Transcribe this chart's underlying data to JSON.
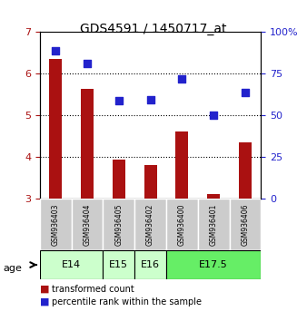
{
  "title": "GDS4591 / 1450717_at",
  "samples": [
    "GSM936403",
    "GSM936404",
    "GSM936405",
    "GSM936402",
    "GSM936400",
    "GSM936401",
    "GSM936406"
  ],
  "bar_values": [
    6.35,
    5.65,
    3.95,
    3.82,
    4.62,
    3.12,
    4.35
  ],
  "scatter_values": [
    6.55,
    6.25,
    5.35,
    5.38,
    5.88,
    5.02,
    5.56
  ],
  "bar_color": "#aa1111",
  "scatter_color": "#2222cc",
  "ylim_left": [
    3,
    7
  ],
  "ylim_right": [
    0,
    100
  ],
  "yticks_left": [
    3,
    4,
    5,
    6,
    7
  ],
  "yticks_right": [
    0,
    25,
    50,
    75,
    100
  ],
  "ytick_labels_right": [
    "0",
    "25",
    "50",
    "75",
    "100%"
  ],
  "groups": [
    {
      "label": "E14",
      "samples": [
        "GSM936403",
        "GSM936404"
      ],
      "color": "#ccffcc"
    },
    {
      "label": "E15",
      "samples": [
        "GSM936405"
      ],
      "color": "#ccffcc"
    },
    {
      "label": "E16",
      "samples": [
        "GSM936402"
      ],
      "color": "#ccffcc"
    },
    {
      "label": "E17.5",
      "samples": [
        "GSM936400",
        "GSM936401",
        "GSM936406"
      ],
      "color": "#66ee66"
    }
  ],
  "age_label": "age",
  "legend_bar_label": "transformed count",
  "legend_scatter_label": "percentile rank within the sample",
  "background_color": "#ffffff",
  "bar_width": 0.4,
  "grid_color": "#000000",
  "scatter_size": 30
}
